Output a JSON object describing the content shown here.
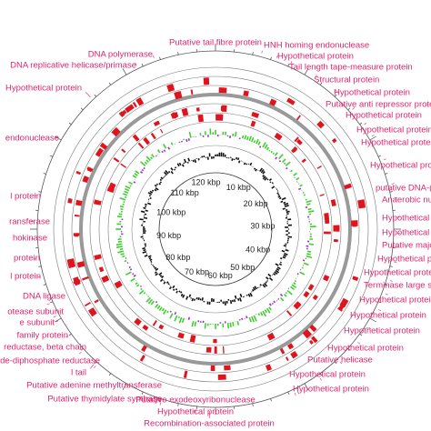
{
  "genome_map": {
    "gene_labels": [
      "Putative tail fibre protein",
      "HNH homing endonuclease",
      "Hypothetical protein",
      "Tail length tape-measure protein",
      "Structural protein",
      "Hypothetical protein",
      "Putative anti repressor protein",
      "Hypothetical protein",
      "Hypothetical protein",
      "Hypothetical protein",
      "Hypothetical protein",
      "putative DNA-(",
      "Anaerobic nuc",
      "Hypothetical p",
      "Hypothetical p",
      "Putative majo",
      "Hypothetical p",
      "Hypothetical protein",
      "Terminase large su",
      "Hypothetical protein",
      "Hypothetical protein",
      "Hypothetical protein",
      "Hypothetical protein",
      "Putative helicase",
      "Hypothetical protein",
      "Hypothetical protein",
      "Recombination-associated protein",
      "Hypothetical protein",
      "Putative exodeoxyribonuclease",
      "Putative thymidylate synthase",
      "Putative adenine methyltransferase",
      "l tail",
      "de-diphosphate reductase",
      "reductase, beta chain",
      "family protein",
      "e subunit",
      "otease subunit",
      "DNA ligase",
      "l protein",
      "protein",
      "hokinase",
      "ransferase",
      "l protein",
      "endonuclease",
      "Hypothetical protein",
      "DNA replicative helicase/primase",
      "DNA polymerase"
    ],
    "kbp_labels": [
      "10 kbp",
      "20 kbp",
      "30 kbp",
      "40 kbp",
      "50 kbp",
      "60 kbp",
      "70 kbp",
      "80 kbp",
      "90 kbp",
      "100 kbp",
      "110 kbp",
      "120 kbp"
    ]
  }
}
